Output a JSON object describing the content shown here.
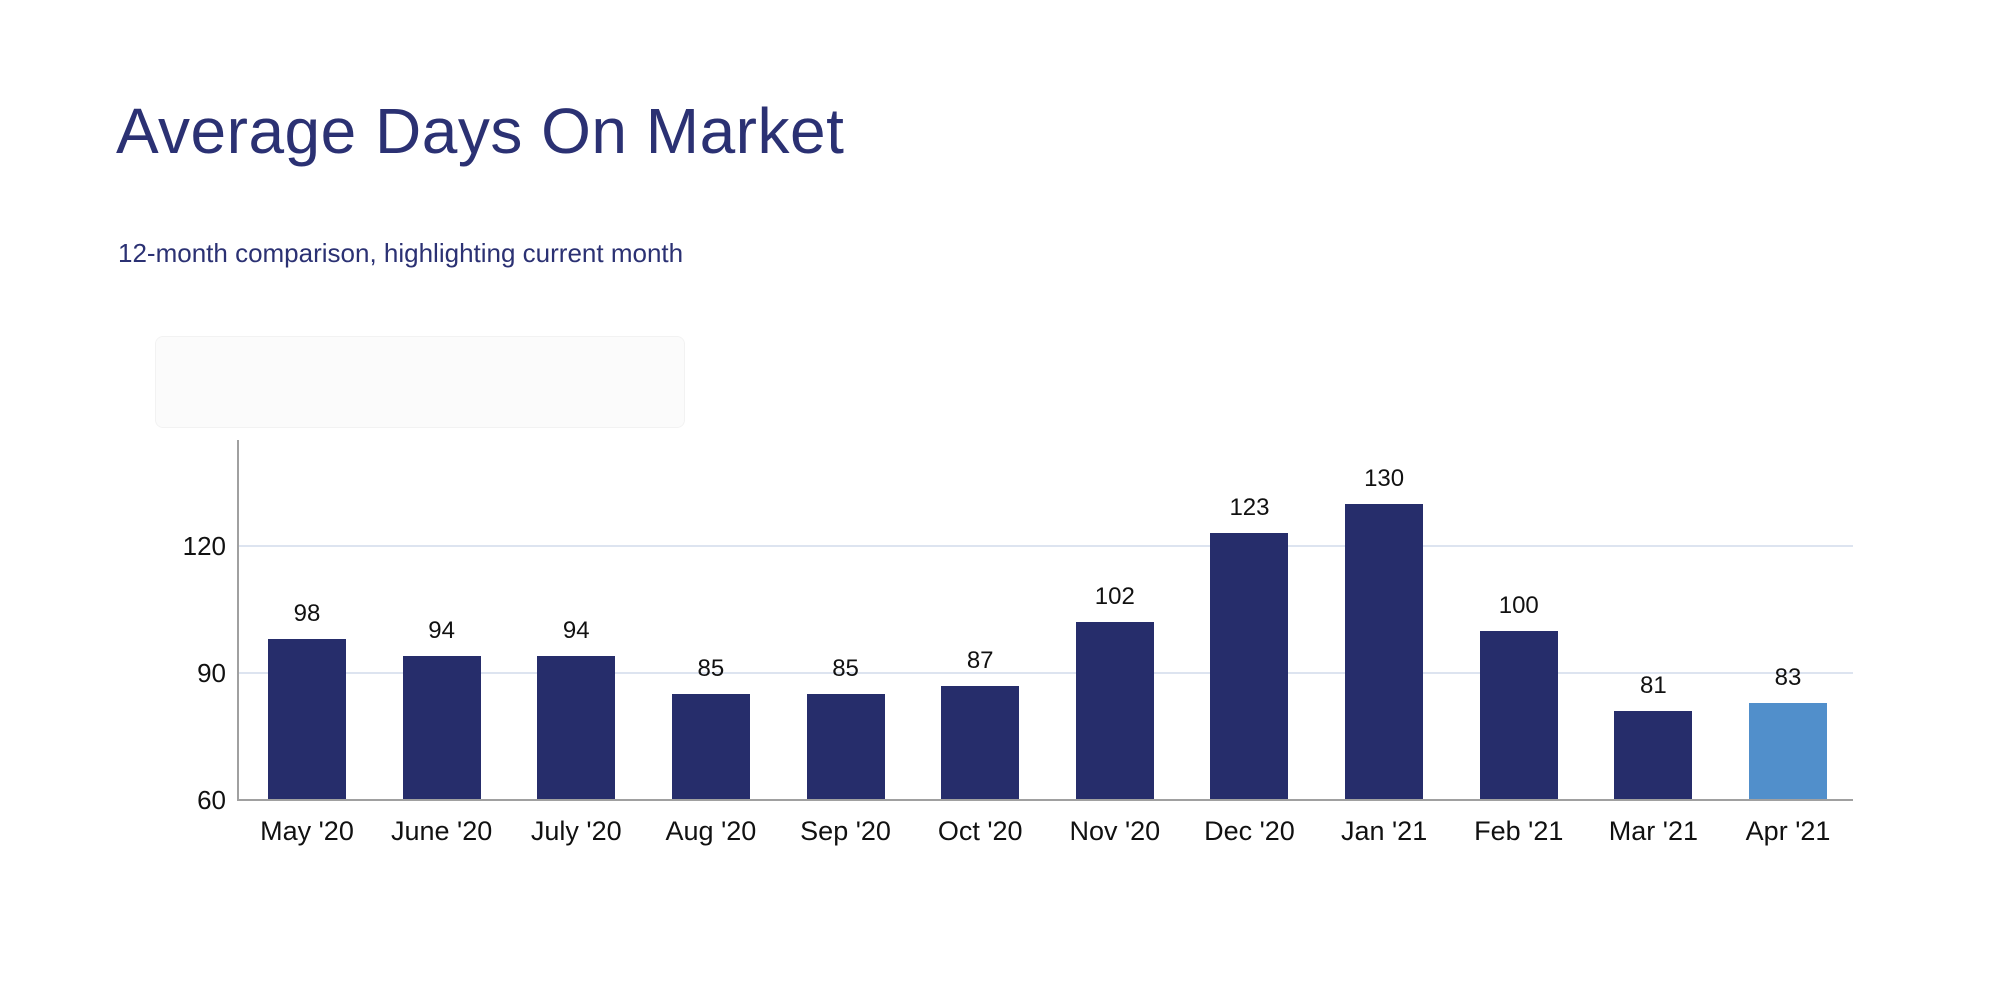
{
  "header": {
    "title": "Average Days On Market",
    "subtitle": "12-month comparison, highlighting current month"
  },
  "chart_data": {
    "type": "bar",
    "title": "Average Days On Market",
    "subtitle": "12-month comparison, highlighting current month",
    "categories": [
      "May '20",
      "June '20",
      "July '20",
      "Aug '20",
      "Sep '20",
      "Oct '20",
      "Nov '20",
      "Dec '20",
      "Jan '21",
      "Feb '21",
      "Mar '21",
      "Apr '21"
    ],
    "values": [
      98,
      94,
      94,
      85,
      85,
      87,
      102,
      123,
      130,
      100,
      81,
      83
    ],
    "highlight_index": 11,
    "highlight_meaning": "current month",
    "xlabel": "",
    "ylabel": "",
    "yticks": [
      60,
      90,
      120
    ],
    "ylim": [
      60,
      145
    ],
    "grid": true,
    "legend": false,
    "colors": {
      "bar": "#262d6b",
      "highlight_bar": "#518fcb",
      "gridline": "#dde4f0",
      "axis_line": "#a0a0a0",
      "tick_label": "#111111",
      "value_label": "#111111",
      "title_text": "#2b3173"
    }
  }
}
